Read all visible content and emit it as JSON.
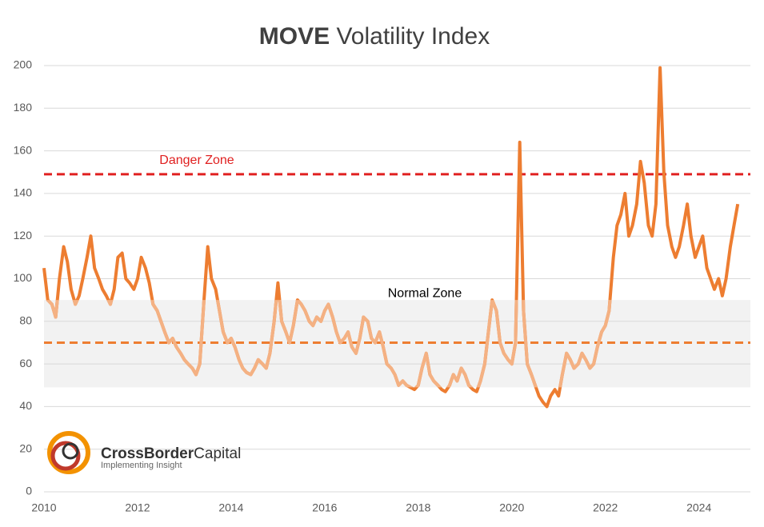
{
  "chart_data": {
    "type": "line",
    "title": [
      "MOVE",
      "Volatility Index"
    ],
    "x": [
      2010,
      2010.08,
      2010.17,
      2010.25,
      2010.33,
      2010.42,
      2010.5,
      2010.58,
      2010.67,
      2010.75,
      2010.83,
      2010.92,
      2011,
      2011.08,
      2011.17,
      2011.25,
      2011.33,
      2011.42,
      2011.5,
      2011.58,
      2011.67,
      2011.75,
      2011.83,
      2011.92,
      2012,
      2012.08,
      2012.17,
      2012.25,
      2012.33,
      2012.42,
      2012.5,
      2012.58,
      2012.67,
      2012.75,
      2012.83,
      2012.92,
      2013,
      2013.08,
      2013.17,
      2013.25,
      2013.33,
      2013.42,
      2013.5,
      2013.58,
      2013.67,
      2013.75,
      2013.83,
      2013.92,
      2014,
      2014.08,
      2014.17,
      2014.25,
      2014.33,
      2014.42,
      2014.5,
      2014.58,
      2014.67,
      2014.75,
      2014.83,
      2014.92,
      2015,
      2015.08,
      2015.17,
      2015.25,
      2015.33,
      2015.42,
      2015.5,
      2015.58,
      2015.67,
      2015.75,
      2015.83,
      2015.92,
      2016,
      2016.08,
      2016.17,
      2016.25,
      2016.33,
      2016.42,
      2016.5,
      2016.58,
      2016.67,
      2016.75,
      2016.83,
      2016.92,
      2017,
      2017.08,
      2017.17,
      2017.25,
      2017.33,
      2017.42,
      2017.5,
      2017.58,
      2017.67,
      2017.75,
      2017.83,
      2017.92,
      2018,
      2018.08,
      2018.17,
      2018.25,
      2018.33,
      2018.42,
      2018.5,
      2018.58,
      2018.67,
      2018.75,
      2018.83,
      2018.92,
      2019,
      2019.08,
      2019.17,
      2019.25,
      2019.33,
      2019.42,
      2019.5,
      2019.58,
      2019.67,
      2019.75,
      2019.83,
      2019.92,
      2020,
      2020.08,
      2020.17,
      2020.25,
      2020.33,
      2020.42,
      2020.5,
      2020.58,
      2020.67,
      2020.75,
      2020.83,
      2020.92,
      2021,
      2021.08,
      2021.17,
      2021.25,
      2021.33,
      2021.42,
      2021.5,
      2021.58,
      2021.67,
      2021.75,
      2021.83,
      2021.92,
      2022,
      2022.08,
      2022.17,
      2022.25,
      2022.33,
      2022.42,
      2022.5,
      2022.58,
      2022.67,
      2022.75,
      2022.83,
      2022.92,
      2023,
      2023.08,
      2023.17,
      2023.25,
      2023.33,
      2023.42,
      2023.5,
      2023.58,
      2023.67,
      2023.75,
      2023.83,
      2023.92,
      2024,
      2024.08,
      2024.17,
      2024.25,
      2024.33,
      2024.42,
      2024.5,
      2024.58,
      2024.67,
      2024.75,
      2024.83
    ],
    "series": [
      {
        "name": "MOVE",
        "color": "#ed7d31",
        "zone_color": "#f4b183",
        "values": [
          105,
          90,
          88,
          82,
          100,
          115,
          108,
          95,
          88,
          92,
          100,
          110,
          120,
          105,
          100,
          95,
          92,
          88,
          95,
          110,
          112,
          100,
          98,
          95,
          100,
          110,
          105,
          98,
          88,
          85,
          80,
          75,
          70,
          72,
          68,
          65,
          62,
          60,
          58,
          55,
          60,
          90,
          115,
          100,
          95,
          85,
          75,
          70,
          72,
          68,
          62,
          58,
          56,
          55,
          58,
          62,
          60,
          58,
          65,
          80,
          98,
          80,
          75,
          70,
          78,
          90,
          88,
          85,
          80,
          78,
          82,
          80,
          85,
          88,
          82,
          75,
          70,
          72,
          75,
          68,
          65,
          72,
          82,
          80,
          72,
          70,
          75,
          68,
          60,
          58,
          55,
          50,
          52,
          50,
          49,
          48,
          50,
          58,
          65,
          55,
          52,
          50,
          48,
          47,
          50,
          55,
          52,
          58,
          55,
          50,
          48,
          47,
          52,
          60,
          75,
          90,
          85,
          70,
          65,
          62,
          60,
          70,
          164,
          85,
          60,
          55,
          50,
          45,
          42,
          40,
          45,
          48,
          45,
          55,
          65,
          62,
          58,
          60,
          65,
          62,
          58,
          60,
          68,
          75,
          78,
          85,
          110,
          125,
          130,
          140,
          120,
          125,
          135,
          155,
          145,
          125,
          120,
          135,
          199,
          150,
          125,
          115,
          110,
          115,
          125,
          135,
          120,
          110,
          115,
          120,
          105,
          100,
          95,
          100,
          92,
          100,
          115,
          125,
          135
        ]
      }
    ],
    "xlim": [
      2010,
      2025.1
    ],
    "xticks": [
      2010,
      2012,
      2014,
      2016,
      2018,
      2020,
      2022,
      2024
    ],
    "ylim": [
      0,
      200
    ],
    "yticks": [
      0,
      20,
      40,
      60,
      80,
      100,
      120,
      140,
      160,
      180,
      200
    ],
    "grid": true,
    "danger_line": {
      "label": "Danger Zone",
      "value": 149,
      "color": "#e02020"
    },
    "normal_zone": {
      "label": "Normal Zone",
      "band": [
        49,
        90
      ],
      "mean": 70,
      "color": "#ed7d31",
      "fill": "#f2f2f2"
    }
  },
  "logo": {
    "name": [
      "CrossBorder",
      "Capital"
    ],
    "tagline": "Implementing Insight"
  }
}
